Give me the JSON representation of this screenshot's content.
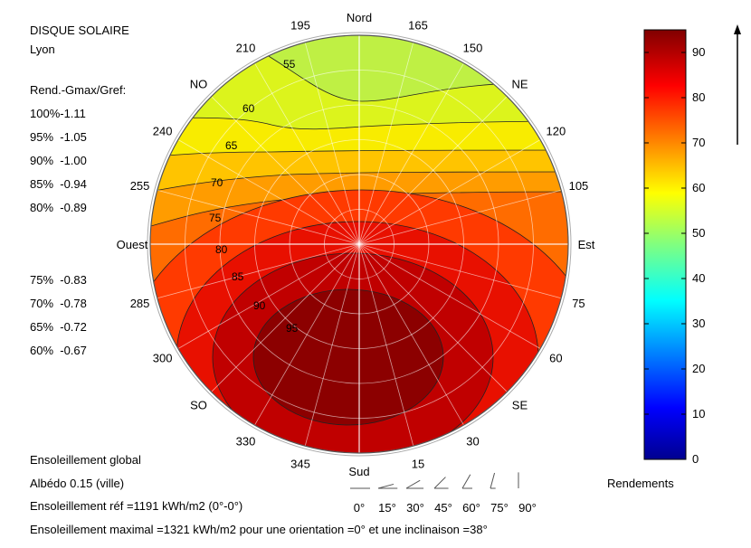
{
  "header": {
    "title": "DISQUE SOLAIRE",
    "city": "Lyon"
  },
  "legend_left": {
    "heading": "Rend.-Gmax/Gref:",
    "rows": [
      "100%-1.11",
      "95%  -1.05",
      "90%  -1.00",
      "85%  -0.94",
      "80%  -0.89",
      "75%  -0.83",
      "70%  -0.78",
      "65%  -0.72",
      "60%  -0.67"
    ]
  },
  "footer": {
    "line1": "Ensoleillement global",
    "line2": "Albédo 0.15 (ville)",
    "line3": "Ensoleillement réf =1191 kWh/m2 (0°-0°)",
    "line4": "Ensoleillement maximal =1321 kWh/m2 pour une orientation =0° et une inclinaison =38°"
  },
  "tilt_legend": {
    "labels": [
      "0°",
      "15°",
      "30°",
      "45°",
      "60°",
      "75°",
      "90°"
    ],
    "angles": [
      0,
      15,
      30,
      45,
      60,
      75,
      90
    ]
  },
  "chart_data": {
    "type": "contour-polar",
    "azimuth_labels": [
      {
        "az": 0,
        "text": "Sud"
      },
      {
        "az": 15,
        "text": "15"
      },
      {
        "az": 30,
        "text": "30"
      },
      {
        "az": 45,
        "text": "SE"
      },
      {
        "az": 60,
        "text": "60"
      },
      {
        "az": 75,
        "text": "75"
      },
      {
        "az": 90,
        "text": "Est"
      },
      {
        "az": 105,
        "text": "105"
      },
      {
        "az": 120,
        "text": "120"
      },
      {
        "az": 135,
        "text": "NE"
      },
      {
        "az": 150,
        "text": "150"
      },
      {
        "az": 165,
        "text": "165"
      },
      {
        "az": 180,
        "text": "Nord"
      },
      {
        "az": 195,
        "text": "195"
      },
      {
        "az": 210,
        "text": "210"
      },
      {
        "az": 225,
        "text": "NO"
      },
      {
        "az": 240,
        "text": "240"
      },
      {
        "az": 255,
        "text": "255"
      },
      {
        "az": 270,
        "text": "Ouest"
      },
      {
        "az": 285,
        "text": "285"
      },
      {
        "az": 300,
        "text": "300"
      },
      {
        "az": 315,
        "text": "SO"
      },
      {
        "az": 330,
        "text": "330"
      },
      {
        "az": 345,
        "text": "345"
      }
    ],
    "contour_levels": [
      55,
      60,
      65,
      70,
      75,
      80,
      85,
      90,
      95
    ],
    "colorbar": {
      "label": "Rendements",
      "ticks": [
        0,
        10,
        20,
        30,
        40,
        50,
        60,
        70,
        80,
        90
      ],
      "range": [
        0,
        95
      ],
      "colormap": "jet"
    },
    "band_colors": [
      "#bff044",
      "#dcf41c",
      "#f8ec00",
      "#ffc400",
      "#ff9c00",
      "#ff6c00",
      "#ff3a00",
      "#e81000",
      "#c00000",
      "#8c0000"
    ]
  }
}
